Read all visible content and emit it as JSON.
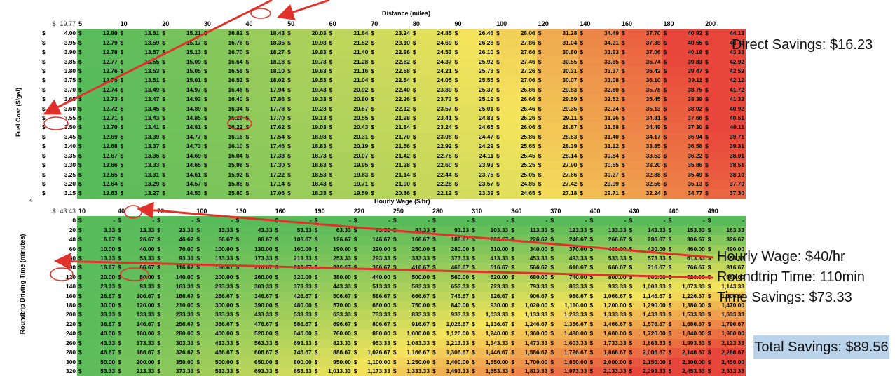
{
  "fuel": {
    "caption": "Distance (miles)",
    "ylabel": "Fuel Cost ($/gal)",
    "corner_currency": "$",
    "corner_value": "19.77",
    "columns": [
      "5",
      "10",
      "20",
      "30",
      "40",
      "50",
      "60",
      "70",
      "80",
      "90",
      "100",
      "120",
      "140",
      "160",
      "180",
      "200"
    ],
    "rows": [
      {
        "label": "4.00",
        "cells": [
          "12.80",
          "13.61",
          "15.21",
          "16.82",
          "18.43",
          "20.03",
          "21.64",
          "23.24",
          "24.85",
          "26.46",
          "28.06",
          "31.28",
          "34.49",
          "37.70",
          "40.92",
          "44.13"
        ]
      },
      {
        "label": "3.95",
        "cells": [
          "12.79",
          "13.59",
          "15.17",
          "16.76",
          "18.35",
          "19.93",
          "21.52",
          "23.10",
          "24.69",
          "26.28",
          "27.86",
          "31.04",
          "34.21",
          "37.38",
          "40.55",
          "43.73"
        ]
      },
      {
        "label": "3.90",
        "cells": [
          "12.78",
          "13.57",
          "15.13",
          "16.70",
          "18.27",
          "19.83",
          "21.40",
          "22.96",
          "24.53",
          "26.10",
          "27.66",
          "30.80",
          "33.93",
          "37.06",
          "40.19",
          "43.33"
        ]
      },
      {
        "label": "3.85",
        "cells": [
          "12.77",
          "13.55",
          "15.09",
          "16.64",
          "18.18",
          "19.73",
          "21.28",
          "22.82",
          "24.37",
          "25.92",
          "27.46",
          "30.55",
          "33.65",
          "36.74",
          "39.83",
          "42.92"
        ]
      },
      {
        "label": "3.80",
        "cells": [
          "12.76",
          "13.53",
          "15.05",
          "16.58",
          "18.10",
          "19.63",
          "21.16",
          "22.68",
          "24.21",
          "25.73",
          "27.26",
          "30.31",
          "33.37",
          "36.42",
          "39.47",
          "42.52"
        ]
      },
      {
        "label": "3.75",
        "cells": [
          "12.75",
          "13.51",
          "15.01",
          "16.52",
          "18.02",
          "19.53",
          "21.04",
          "22.54",
          "24.05",
          "25.55",
          "27.06",
          "30.07",
          "33.08",
          "36.10",
          "39.11",
          "42.12"
        ]
      },
      {
        "label": "3.70",
        "cells": [
          "12.74",
          "13.49",
          "14.97",
          "16.46",
          "17.94",
          "19.43",
          "20.92",
          "22.40",
          "23.89",
          "25.37",
          "26.86",
          "29.83",
          "32.80",
          "35.78",
          "38.75",
          "41.72"
        ]
      },
      {
        "label": "3.65",
        "cells": [
          "12.73",
          "13.47",
          "14.93",
          "16.40",
          "17.86",
          "19.33",
          "20.80",
          "22.26",
          "23.73",
          "25.19",
          "26.66",
          "29.59",
          "32.52",
          "35.45",
          "38.39",
          "41.32"
        ]
      },
      {
        "label": "3.60",
        "cells": [
          "12.72",
          "13.45",
          "14.89",
          "16.34",
          "17.78",
          "19.23",
          "20.67",
          "22.12",
          "23.57",
          "25.01",
          "26.46",
          "29.35",
          "32.24",
          "35.13",
          "38.02",
          "40.92"
        ]
      },
      {
        "label": "3.55",
        "cells": [
          "12.71",
          "13.43",
          "14.85",
          "16.28",
          "17.70",
          "19.13",
          "20.55",
          "21.98",
          "23.41",
          "24.83",
          "26.26",
          "29.11",
          "31.96",
          "34.81",
          "37.66",
          "40.51"
        ]
      },
      {
        "label": "3.50",
        "cells": [
          "12.70",
          "13.41",
          "14.81",
          "16.22",
          "17.62",
          "19.03",
          "20.43",
          "21.84",
          "23.24",
          "24.65",
          "26.06",
          "28.87",
          "31.68",
          "34.49",
          "37.30",
          "40.11"
        ]
      },
      {
        "label": "3.45",
        "cells": [
          "12.69",
          "13.39",
          "14.77",
          "16.16",
          "17.54",
          "18.93",
          "20.31",
          "21.70",
          "23.08",
          "24.47",
          "25.86",
          "28.63",
          "31.40",
          "34.17",
          "36.94",
          "39.71"
        ]
      },
      {
        "label": "3.40",
        "cells": [
          "12.68",
          "13.37",
          "14.73",
          "16.10",
          "17.46",
          "18.83",
          "20.19",
          "21.56",
          "22.92",
          "24.29",
          "25.65",
          "28.39",
          "31.12",
          "33.85",
          "36.58",
          "39.31"
        ]
      },
      {
        "label": "3.35",
        "cells": [
          "12.67",
          "13.35",
          "14.69",
          "16.04",
          "17.38",
          "18.73",
          "20.07",
          "21.42",
          "22.76",
          "24.11",
          "25.45",
          "28.14",
          "30.84",
          "33.53",
          "36.22",
          "38.91"
        ]
      },
      {
        "label": "3.30",
        "cells": [
          "12.66",
          "13.33",
          "14.65",
          "15.98",
          "17.30",
          "18.63",
          "19.95",
          "21.28",
          "22.60",
          "23.93",
          "25.25",
          "27.90",
          "30.55",
          "33.20",
          "35.86",
          "38.51"
        ]
      },
      {
        "label": "3.25",
        "cells": [
          "12.65",
          "13.31",
          "14.61",
          "15.92",
          "17.22",
          "18.53",
          "19.83",
          "21.14",
          "22.44",
          "23.75",
          "25.05",
          "27.66",
          "30.27",
          "32.88",
          "35.49",
          "38.10"
        ]
      },
      {
        "label": "3.20",
        "cells": [
          "12.64",
          "13.29",
          "14.57",
          "15.86",
          "17.14",
          "18.43",
          "19.71",
          "21.00",
          "22.28",
          "23.57",
          "24.85",
          "27.42",
          "29.99",
          "32.56",
          "35.13",
          "37.70"
        ]
      },
      {
        "label": "3.15",
        "cells": [
          "12.63",
          "13.27",
          "14.53",
          "15.80",
          "17.06",
          "18.33",
          "19.59",
          "20.86",
          "22.12",
          "23.39",
          "24.65",
          "27.18",
          "29.71",
          "32.24",
          "34.77",
          "37.30"
        ]
      }
    ]
  },
  "wage": {
    "caption": "Hourly Wage ($/hr)",
    "ylabel": "Roundtrip Driving Time (minutes)",
    "corner_currency": "$",
    "corner_value": "43.43",
    "columns": [
      "10",
      "40",
      "70",
      "100",
      "130",
      "160",
      "190",
      "220",
      "250",
      "280",
      "310",
      "340",
      "370",
      "400",
      "430",
      "460",
      "490"
    ],
    "rows": [
      {
        "label": "0",
        "cells": [
          "-",
          "-",
          "-",
          "-",
          "-",
          "-",
          "-",
          "-",
          "-",
          "-",
          "-",
          "-",
          "-",
          "-",
          "-",
          "-",
          "-"
        ]
      },
      {
        "label": "20",
        "cells": [
          "3.33",
          "13.33",
          "23.33",
          "33.33",
          "43.33",
          "53.33",
          "63.33",
          "73.33",
          "83.33",
          "93.33",
          "103.33",
          "113.33",
          "123.33",
          "133.33",
          "143.33",
          "153.33",
          "163.33"
        ]
      },
      {
        "label": "40",
        "cells": [
          "6.67",
          "26.67",
          "46.67",
          "66.67",
          "86.67",
          "106.67",
          "126.67",
          "146.67",
          "166.67",
          "186.67",
          "206.67",
          "226.67",
          "246.67",
          "266.67",
          "286.67",
          "306.67",
          "326.67"
        ]
      },
      {
        "label": "60",
        "cells": [
          "10.00",
          "40.00",
          "70.00",
          "100.00",
          "130.00",
          "160.00",
          "190.00",
          "220.00",
          "250.00",
          "280.00",
          "310.00",
          "340.00",
          "370.00",
          "400.00",
          "430.00",
          "460.00",
          "490.00"
        ]
      },
      {
        "label": "80",
        "cells": [
          "13.33",
          "53.33",
          "93.33",
          "133.33",
          "173.33",
          "213.33",
          "253.33",
          "293.33",
          "333.33",
          "373.33",
          "413.33",
          "453.33",
          "493.33",
          "533.33",
          "573.33",
          "613.33",
          "653.33"
        ]
      },
      {
        "label": "100",
        "cells": [
          "16.67",
          "66.67",
          "116.67",
          "166.67",
          "216.67",
          "266.67",
          "316.67",
          "366.67",
          "416.67",
          "466.67",
          "516.67",
          "566.67",
          "616.67",
          "666.67",
          "716.67",
          "766.67",
          "816.67"
        ]
      },
      {
        "label": "120",
        "cells": [
          "20.00",
          "80.00",
          "140.00",
          "200.00",
          "260.00",
          "320.00",
          "380.00",
          "440.00",
          "500.00",
          "560.00",
          "620.00",
          "680.00",
          "740.00",
          "800.00",
          "860.00",
          "920.00",
          "980.00"
        ]
      },
      {
        "label": "140",
        "cells": [
          "23.33",
          "93.33",
          "163.33",
          "233.33",
          "303.33",
          "373.33",
          "443.33",
          "513.33",
          "583.33",
          "653.33",
          "723.33",
          "793.33",
          "863.33",
          "933.33",
          "1,003.33",
          "1,073.33",
          "1,143.33"
        ]
      },
      {
        "label": "160",
        "cells": [
          "26.67",
          "106.67",
          "186.67",
          "266.67",
          "346.67",
          "426.67",
          "506.67",
          "586.67",
          "666.67",
          "746.67",
          "826.67",
          "906.67",
          "986.67",
          "1,066.67",
          "1,146.67",
          "1,226.67",
          "1,306.67"
        ]
      },
      {
        "label": "180",
        "cells": [
          "30.00",
          "120.00",
          "210.00",
          "300.00",
          "390.00",
          "480.00",
          "570.00",
          "660.00",
          "750.00",
          "840.00",
          "930.00",
          "1,020.00",
          "1,110.00",
          "1,200.00",
          "1,290.00",
          "1,380.00",
          "1,470.00"
        ]
      },
      {
        "label": "200",
        "cells": [
          "33.33",
          "133.33",
          "233.33",
          "333.33",
          "433.33",
          "533.33",
          "633.33",
          "733.33",
          "833.33",
          "933.33",
          "1,033.33",
          "1,133.33",
          "1,233.33",
          "1,333.33",
          "1,433.33",
          "1,533.33",
          "1,633.33"
        ]
      },
      {
        "label": "220",
        "cells": [
          "36.67",
          "146.67",
          "256.67",
          "366.67",
          "476.67",
          "586.67",
          "696.67",
          "806.67",
          "916.67",
          "1,026.67",
          "1,136.67",
          "1,246.67",
          "1,356.67",
          "1,466.67",
          "1,576.67",
          "1,686.67",
          "1,796.67"
        ]
      },
      {
        "label": "240",
        "cells": [
          "40.00",
          "160.00",
          "280.00",
          "400.00",
          "520.00",
          "640.00",
          "760.00",
          "880.00",
          "1,000.00",
          "1,120.00",
          "1,240.00",
          "1,360.00",
          "1,480.00",
          "1,600.00",
          "1,720.00",
          "1,840.00",
          "1,960.00"
        ]
      },
      {
        "label": "260",
        "cells": [
          "43.33",
          "173.33",
          "303.33",
          "433.33",
          "563.33",
          "693.33",
          "823.33",
          "953.33",
          "1,083.33",
          "1,213.33",
          "1,343.33",
          "1,473.33",
          "1,603.33",
          "1,733.33",
          "1,863.33",
          "1,993.33",
          "2,123.33"
        ]
      },
      {
        "label": "280",
        "cells": [
          "46.67",
          "186.67",
          "326.67",
          "466.67",
          "606.67",
          "746.67",
          "886.67",
          "1,026.67",
          "1,166.67",
          "1,306.67",
          "1,446.67",
          "1,586.67",
          "1,726.67",
          "1,866.67",
          "2,006.67",
          "2,146.67",
          "2,286.67"
        ]
      },
      {
        "label": "300",
        "cells": [
          "50.00",
          "200.00",
          "350.00",
          "500.00",
          "650.00",
          "800.00",
          "950.00",
          "1,100.00",
          "1,250.00",
          "1,400.00",
          "1,550.00",
          "1,700.00",
          "1,850.00",
          "2,000.00",
          "2,150.00",
          "2,300.00",
          "2,450.00"
        ]
      },
      {
        "label": "320",
        "cells": [
          "53.33",
          "213.33",
          "373.33",
          "533.33",
          "693.33",
          "853.33",
          "1,013.33",
          "1,173.33",
          "1,333.33",
          "1,493.33",
          "1,653.33",
          "1,813.33",
          "1,973.33",
          "2,133.33",
          "2,293.33",
          "2,453.33",
          "2,613.33"
        ]
      }
    ]
  },
  "notes": {
    "direct_savings": "Direct Savings: $16.23",
    "hourly_wage": "Hourly Wage: $40/hr",
    "roundtrip_time": "Roundtrip Time: 110min",
    "time_savings": "Time Savings: $73.33",
    "total_savings": "Total Savings: $89.56",
    "small_mark": "‹"
  },
  "colors": {
    "green": "#57bb5a",
    "yellow": "#f4e45c",
    "red": "#e8463a",
    "arrow": "#e0322b",
    "total_box": "#b9d3ea"
  }
}
